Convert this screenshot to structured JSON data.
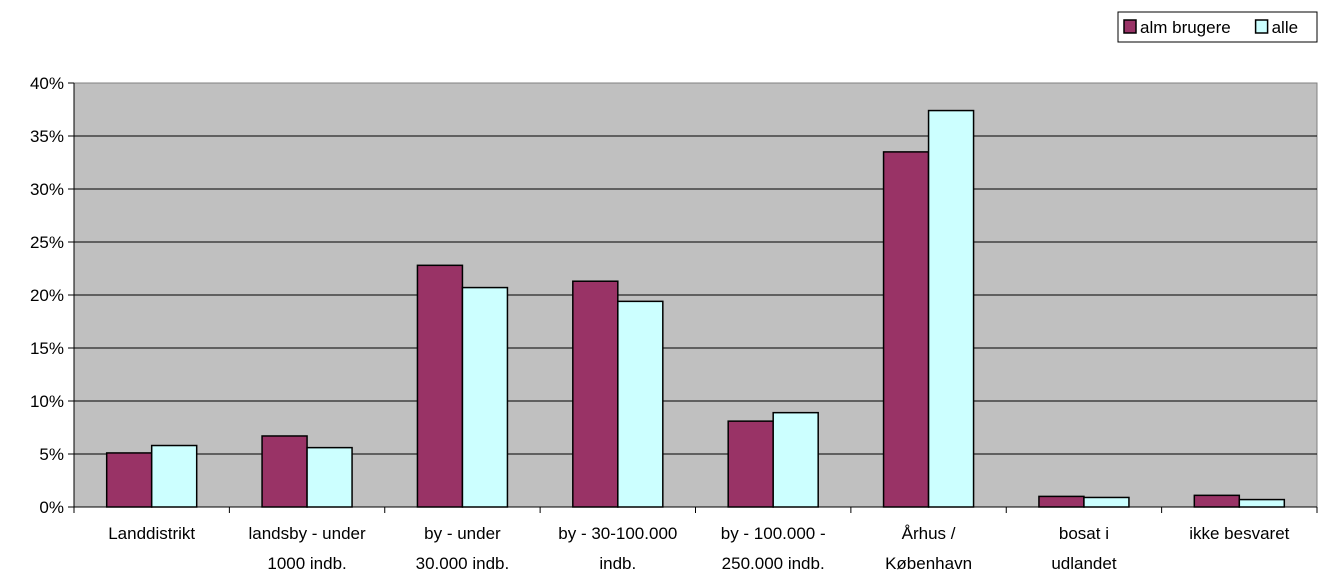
{
  "chart_data": {
    "type": "bar",
    "categories": [
      [
        "Landdistrikt"
      ],
      [
        "landsby - under",
        "1000 indb."
      ],
      [
        "by - under",
        "30.000 indb."
      ],
      [
        "by - 30-100.000",
        "indb."
      ],
      [
        "by - 100.000 -",
        "250.000 indb."
      ],
      [
        "Århus /",
        "København"
      ],
      [
        "bosat i",
        "udlandet"
      ],
      [
        "ikke besvaret"
      ]
    ],
    "series": [
      {
        "name": "alm brugere",
        "color": "#993366",
        "values": [
          5.1,
          6.7,
          22.8,
          21.3,
          8.1,
          33.5,
          1.0,
          1.1
        ]
      },
      {
        "name": "alle",
        "color": "#CCFFFF",
        "values": [
          5.8,
          5.6,
          20.7,
          19.4,
          8.9,
          37.4,
          0.9,
          0.7
        ]
      }
    ],
    "ylim": [
      0,
      40
    ],
    "yticks": [
      "0%",
      "5%",
      "10%",
      "15%",
      "20%",
      "25%",
      "30%",
      "35%",
      "40%"
    ],
    "grid": true,
    "plot_background": "#C0C0C0",
    "legend_position": "top-right"
  }
}
